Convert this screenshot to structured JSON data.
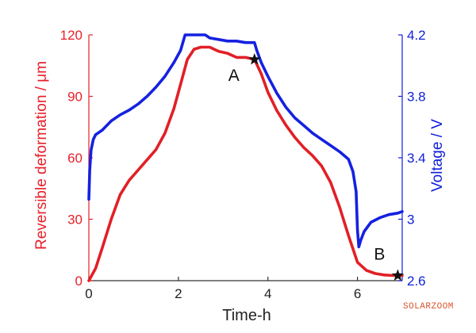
{
  "chart_data": {
    "type": "line",
    "xlabel": "Time-h",
    "ylabel_left": "Reversible deformation / μm",
    "ylabel_right": "Voltage / V",
    "xlim": [
      0,
      7
    ],
    "ylim_left": [
      0,
      120
    ],
    "ylim_right": [
      2.6,
      4.2
    ],
    "x_ticks": [
      0,
      2,
      4,
      6
    ],
    "y_ticks_left": [
      0,
      30,
      60,
      90,
      120
    ],
    "y_ticks_right": [
      2.6,
      3.0,
      3.4,
      3.8,
      4.2
    ],
    "y_tick_labels_right": [
      "2.6",
      "3",
      "3.4",
      "3.8",
      "4.2"
    ],
    "grid": false,
    "left_axis_color": "#e8202a",
    "right_axis_color": "#1020d8",
    "series": [
      {
        "axis": "left",
        "color": "#e21f26",
        "x": [
          0,
          0.15,
          0.3,
          0.5,
          0.7,
          0.9,
          1.1,
          1.3,
          1.5,
          1.7,
          1.9,
          2.05,
          2.2,
          2.35,
          2.5,
          2.7,
          2.9,
          3.1,
          3.3,
          3.5,
          3.7,
          3.85,
          4.0,
          4.2,
          4.4,
          4.6,
          4.8,
          5.0,
          5.2,
          5.4,
          5.6,
          5.8,
          6.0,
          6.2,
          6.4,
          6.6,
          6.8,
          7.0
        ],
        "values": [
          0,
          6,
          16,
          30,
          42,
          49,
          54,
          59,
          64,
          72,
          84,
          96,
          108,
          113,
          114,
          114,
          112,
          111,
          109,
          109,
          108,
          101,
          92,
          83,
          76,
          70,
          65,
          61,
          56,
          48,
          36,
          22,
          9,
          5,
          3.5,
          2.8,
          2.5,
          2.5
        ]
      },
      {
        "axis": "right",
        "color": "#1521e0",
        "x": [
          0,
          0.02,
          0.05,
          0.1,
          0.15,
          0.2,
          0.3,
          0.5,
          0.7,
          0.9,
          1.1,
          1.3,
          1.5,
          1.7,
          1.9,
          2.05,
          2.15,
          2.4,
          2.6,
          2.7,
          2.9,
          3.1,
          3.3,
          3.5,
          3.7,
          3.75,
          3.85,
          4.0,
          4.2,
          4.4,
          4.6,
          4.8,
          5.0,
          5.2,
          5.4,
          5.6,
          5.8,
          5.9,
          5.97,
          6.0,
          6.03,
          6.07,
          6.15,
          6.3,
          6.5,
          6.7,
          6.9,
          7.0
        ],
        "values": [
          3.13,
          3.32,
          3.45,
          3.52,
          3.55,
          3.56,
          3.58,
          3.64,
          3.68,
          3.71,
          3.75,
          3.8,
          3.86,
          3.93,
          4.02,
          4.1,
          4.2,
          4.2,
          4.2,
          4.18,
          4.17,
          4.16,
          4.16,
          4.15,
          4.15,
          4.1,
          4.02,
          3.93,
          3.82,
          3.73,
          3.66,
          3.61,
          3.56,
          3.52,
          3.48,
          3.44,
          3.39,
          3.31,
          3.18,
          2.93,
          2.82,
          2.86,
          2.92,
          2.98,
          3.01,
          3.03,
          3.04,
          3.05
        ]
      }
    ],
    "markers": [
      {
        "label": "A",
        "x": 3.7,
        "y_left": 108
      },
      {
        "label": "B",
        "x": 6.9,
        "y_left": 2.5
      }
    ]
  },
  "watermark": "SOLARZOOM"
}
